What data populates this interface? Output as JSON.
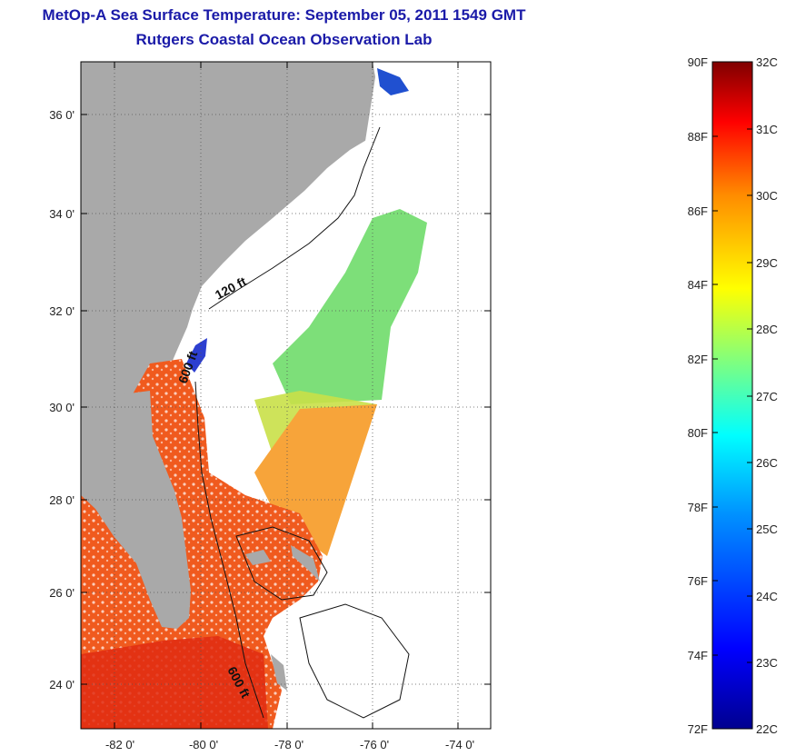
{
  "title": {
    "line1": "MetOp-A Sea Surface Temperature:  September 05, 2011 1549 GMT",
    "line2": "Rutgers Coastal Ocean Observation Lab"
  },
  "map": {
    "lat_ticks": [
      "24 0'",
      "26 0'",
      "28 0'",
      "30 0'",
      "32 0'",
      "34 0'",
      "36 0'"
    ],
    "lon_ticks": [
      "-82 0'",
      "-80 0'",
      "-78 0'",
      "-76 0'",
      "-74 0'"
    ],
    "contour_labels": [
      "120 ft",
      "600 ft",
      "600 ft"
    ],
    "colors": {
      "land": "#a9a9a9",
      "no_data": "#ffffff"
    }
  },
  "colorbar": {
    "fahrenheit": [
      "90F",
      "88F",
      "86F",
      "84F",
      "82F",
      "80F",
      "78F",
      "76F",
      "74F",
      "72F"
    ],
    "celsius": [
      "32C",
      "31C",
      "30C",
      "29C",
      "28C",
      "27C",
      "26C",
      "25C",
      "24C",
      "23C",
      "22C"
    ],
    "colors": [
      "#7f0000",
      "#ff0000",
      "#ff8c00",
      "#ffff00",
      "#7fff7f",
      "#00ffff",
      "#0080ff",
      "#0000ff",
      "#00008f"
    ]
  }
}
